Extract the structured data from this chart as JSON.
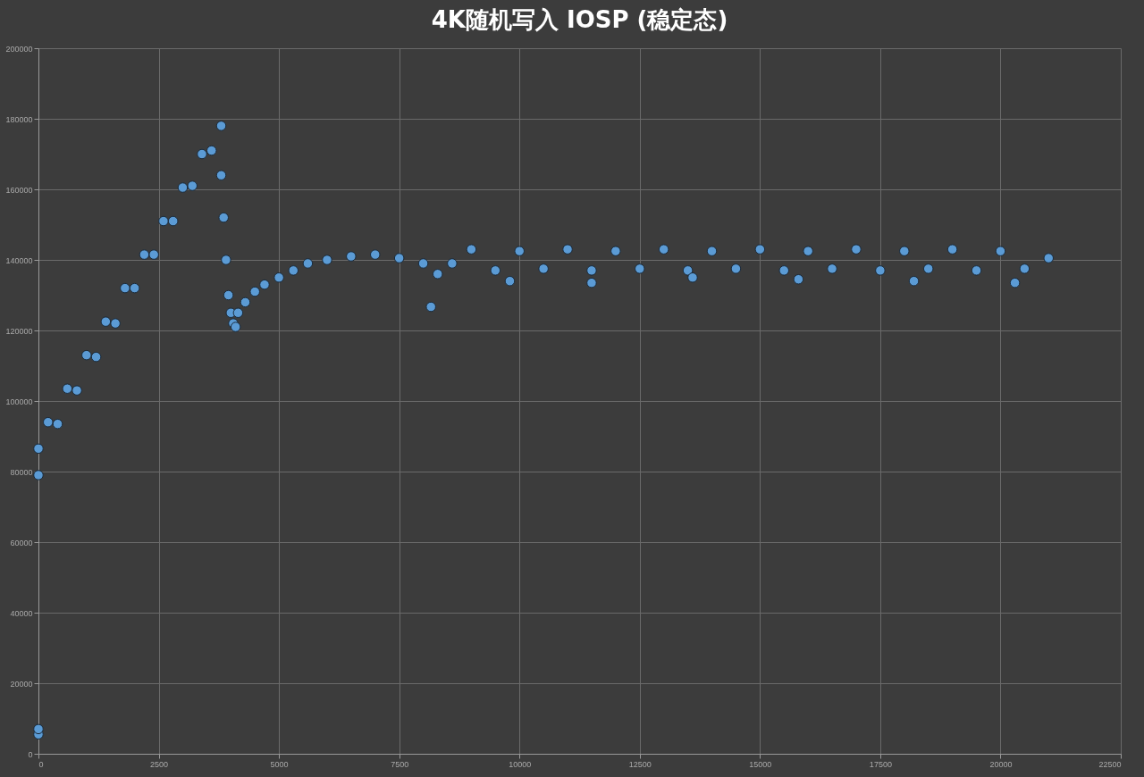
{
  "chart_data": {
    "type": "scatter",
    "title": "4K随机写入  IOSP (稳定态)",
    "marker": "circle",
    "grid": true,
    "xlim": [
      0,
      22500
    ],
    "xticks": [
      0,
      2500,
      5000,
      7500,
      10000,
      12500,
      15000,
      17500,
      20000,
      22500
    ],
    "ylim": [
      0,
      200000
    ],
    "yticks": [
      0,
      20000,
      40000,
      60000,
      80000,
      100000,
      120000,
      140000,
      160000,
      180000,
      200000
    ],
    "x": [
      0,
      0,
      0,
      0,
      200,
      400,
      600,
      800,
      1000,
      1200,
      1400,
      1600,
      1800,
      2000,
      2200,
      2400,
      2600,
      2800,
      3000,
      3200,
      3400,
      3600,
      3800,
      3800,
      3850,
      3900,
      3950,
      4000,
      4050,
      4100,
      4150,
      4300,
      4500,
      4700,
      5000,
      5300,
      5600,
      6000,
      6500,
      7000,
      7500,
      8000,
      8160,
      8300,
      8600,
      9000,
      9500,
      10000,
      10500,
      11000,
      11500,
      12000,
      12500,
      13000,
      13500,
      14000,
      14500,
      15000,
      15500,
      16000,
      16500,
      17000,
      17500,
      18000,
      18500,
      19000,
      19500,
      20000,
      20500,
      21000,
      9800,
      11500,
      13600,
      15800,
      18200,
      20300
    ],
    "series": [
      {
        "color": "#5b9bd5",
        "values": [
          5500,
          7000,
          79000,
          86500,
          94000,
          93500,
          103500,
          103000,
          113000,
          112500,
          122500,
          122000,
          132000,
          132000,
          141500,
          141500,
          151000,
          151000,
          160500,
          161000,
          170000,
          171000,
          178000,
          164000,
          152000,
          140000,
          130000,
          125000,
          122000,
          121000,
          125000,
          128000,
          131000,
          133000,
          135000,
          137000,
          139000,
          140000,
          141000,
          141500,
          140500,
          139000,
          126700,
          136000,
          139000,
          143000,
          137000,
          142500,
          137500,
          143000,
          137000,
          142500,
          137500,
          143000,
          137000,
          142500,
          137500,
          143000,
          137000,
          142500,
          137500,
          143000,
          137000,
          142500,
          137500,
          143000,
          137000,
          142500,
          137500,
          140500,
          134000,
          133500,
          135000,
          134500,
          134000,
          133500
        ]
      }
    ]
  }
}
